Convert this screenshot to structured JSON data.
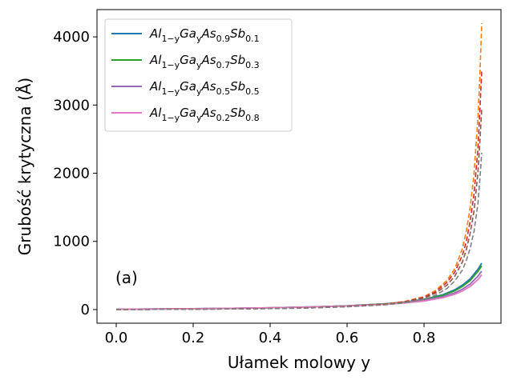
{
  "chart_data": {
    "type": "line",
    "xlabel": "Ułamek molowy y",
    "ylabel": "Grubość krytyczna (Å)",
    "xlim": [
      -0.05,
      1.0
    ],
    "ylim": [
      -200,
      4400
    ],
    "xticks": [
      0.0,
      0.2,
      0.4,
      0.6,
      0.8
    ],
    "xtick_labels": [
      "0.0",
      "0.2",
      "0.4",
      "0.6",
      "0.8"
    ],
    "yticks": [
      0,
      1000,
      2000,
      3000,
      4000
    ],
    "ytick_labels": [
      "0",
      "1000",
      "2000",
      "3000",
      "4000"
    ],
    "annotation": "(a)",
    "grid": false,
    "legend_position": "top-left",
    "legend": [
      {
        "base": "Al",
        "sub1": "1−y",
        "mid1": "Ga",
        "sub2": "y",
        "mid2": "As",
        "sub3": "0.9",
        "mid3": "Sb",
        "sub4": "0.1",
        "color": "#1f77b4"
      },
      {
        "base": "Al",
        "sub1": "1−y",
        "mid1": "Ga",
        "sub2": "y",
        "mid2": "As",
        "sub3": "0.7",
        "mid3": "Sb",
        "sub4": "0.3",
        "color": "#2ca02c"
      },
      {
        "base": "Al",
        "sub1": "1−y",
        "mid1": "Ga",
        "sub2": "y",
        "mid2": "As",
        "sub3": "0.5",
        "mid3": "Sb",
        "sub4": "0.5",
        "color": "#9467bd"
      },
      {
        "base": "Al",
        "sub1": "1−y",
        "mid1": "Ga",
        "sub2": "y",
        "mid2": "As",
        "sub3": "0.2",
        "mid3": "Sb",
        "sub4": "0.8",
        "color": "#e377c2"
      }
    ],
    "series": [
      {
        "style": "solid",
        "color": "#1f77b4",
        "x": [
          0.0,
          0.1,
          0.2,
          0.3,
          0.4,
          0.5,
          0.6,
          0.7,
          0.75,
          0.8,
          0.85,
          0.88,
          0.9,
          0.92,
          0.94,
          0.95
        ],
        "y": [
          5,
          8,
          12,
          18,
          26,
          38,
          55,
          85,
          110,
          150,
          220,
          290,
          360,
          450,
          590,
          680
        ]
      },
      {
        "style": "solid",
        "color": "#2ca02c",
        "x": [
          0.0,
          0.1,
          0.2,
          0.3,
          0.4,
          0.5,
          0.6,
          0.7,
          0.75,
          0.8,
          0.85,
          0.88,
          0.9,
          0.92,
          0.94,
          0.95
        ],
        "y": [
          5,
          8,
          12,
          18,
          26,
          38,
          55,
          84,
          108,
          145,
          210,
          275,
          340,
          425,
          560,
          640
        ]
      },
      {
        "style": "solid",
        "color": "#9467bd",
        "x": [
          0.0,
          0.1,
          0.2,
          0.3,
          0.4,
          0.5,
          0.6,
          0.7,
          0.75,
          0.8,
          0.85,
          0.88,
          0.9,
          0.92,
          0.94,
          0.95
        ],
        "y": [
          5,
          8,
          12,
          18,
          26,
          37,
          53,
          80,
          102,
          135,
          190,
          245,
          300,
          375,
          490,
          560
        ]
      },
      {
        "style": "solid",
        "color": "#e377c2",
        "x": [
          0.0,
          0.1,
          0.2,
          0.3,
          0.4,
          0.5,
          0.6,
          0.7,
          0.75,
          0.8,
          0.85,
          0.88,
          0.9,
          0.92,
          0.94,
          0.95
        ],
        "y": [
          5,
          8,
          12,
          18,
          26,
          36,
          51,
          77,
          97,
          125,
          175,
          225,
          275,
          340,
          440,
          510
        ]
      },
      {
        "style": "dashed",
        "color": "#ff7f0e",
        "x": [
          0.0,
          0.2,
          0.4,
          0.5,
          0.6,
          0.7,
          0.75,
          0.8,
          0.83,
          0.86,
          0.88,
          0.9,
          0.91,
          0.92,
          0.93,
          0.94,
          0.945,
          0.95
        ],
        "y": [
          0,
          5,
          15,
          25,
          45,
          80,
          120,
          190,
          280,
          430,
          600,
          900,
          1150,
          1500,
          2000,
          2800,
          3400,
          4200
        ]
      },
      {
        "style": "dashed",
        "color": "#d62728",
        "x": [
          0.0,
          0.2,
          0.4,
          0.5,
          0.6,
          0.7,
          0.75,
          0.8,
          0.83,
          0.86,
          0.88,
          0.9,
          0.91,
          0.92,
          0.93,
          0.94,
          0.945,
          0.95
        ],
        "y": [
          0,
          5,
          15,
          25,
          45,
          78,
          115,
          180,
          260,
          400,
          550,
          800,
          1000,
          1300,
          1700,
          2350,
          2900,
          3500
        ]
      },
      {
        "style": "dashed",
        "color": "#8c564b",
        "x": [
          0.0,
          0.2,
          0.4,
          0.5,
          0.6,
          0.7,
          0.75,
          0.8,
          0.83,
          0.86,
          0.88,
          0.9,
          0.91,
          0.92,
          0.93,
          0.94,
          0.945,
          0.95
        ],
        "y": [
          0,
          5,
          15,
          24,
          43,
          75,
          110,
          170,
          240,
          360,
          490,
          700,
          880,
          1120,
          1450,
          2000,
          2450,
          2950
        ]
      },
      {
        "style": "dashed",
        "color": "#7f7f7f",
        "x": [
          0.0,
          0.2,
          0.4,
          0.5,
          0.6,
          0.7,
          0.75,
          0.8,
          0.83,
          0.86,
          0.88,
          0.9,
          0.91,
          0.92,
          0.93,
          0.94,
          0.945,
          0.95
        ],
        "y": [
          0,
          5,
          14,
          23,
          41,
          70,
          100,
          150,
          210,
          310,
          420,
          580,
          720,
          900,
          1150,
          1550,
          1900,
          2300
        ]
      }
    ]
  }
}
